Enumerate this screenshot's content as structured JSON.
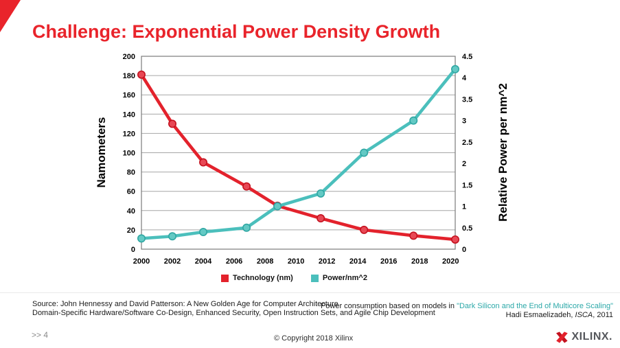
{
  "slide": {
    "title": "Challenge: Exponential Power Density Growth",
    "page_marker": ">> 4",
    "copyright": "© Copyright 2018 Xilinx",
    "logo_text": "XILINX."
  },
  "source_note": {
    "line1": "Source: John Hennessy and David Patterson: A New Golden Age for Computer Architecture",
    "line2": "Domain-Specific Hardware/Software Co-Design, Enhanced Security, Open Instruction Sets, and Agile Chip Development"
  },
  "power_note": {
    "prefix": "Power consumption based on models in ",
    "link": "\"Dark Silicon and the End of Multicore Scaling\"",
    "author_prefix": "Hadi Esmaelizadeh, ",
    "conference": "ISCA",
    "author_suffix": ", 2011"
  },
  "colors": {
    "title_red": "#E9242B",
    "series_red": "#E3222C",
    "series_teal": "#4BBFBC",
    "link_teal": "#2BA8A8",
    "gridline_gray": "#A6A6A6"
  },
  "chart_data": {
    "type": "line",
    "grid": "horizontal",
    "x": [
      2000,
      2002,
      2004,
      2006.8,
      2008.8,
      2011.6,
      2014.4,
      2017.6,
      2020.3
    ],
    "series": [
      {
        "name": "Technology (nm)",
        "axis": "left",
        "color": "#E3222C",
        "marker_fill": "#E84855",
        "marker_stroke": "#C4121F",
        "values": [
          181,
          130,
          90,
          65,
          45,
          32,
          20,
          14,
          10
        ]
      },
      {
        "name": "Power/nm^2",
        "axis": "right",
        "color": "#4BBFBC",
        "marker_fill": "#63C9C4",
        "marker_stroke": "#2FA7A3",
        "values": [
          0.25,
          0.3,
          0.4,
          0.5,
          1.0,
          1.3,
          2.25,
          3.0,
          4.2
        ]
      }
    ],
    "left_axis": {
      "label": "Namometers",
      "min": 0,
      "max": 200,
      "ticks": [
        200,
        180,
        160,
        140,
        120,
        100,
        80,
        60,
        40,
        20,
        0
      ]
    },
    "right_axis": {
      "label": "Relative Power per nm^2",
      "min": 0,
      "max": 4.5,
      "ticks": [
        4.5,
        4,
        3.5,
        3,
        2.5,
        2,
        1.5,
        1,
        0.5,
        0
      ]
    },
    "x_axis": {
      "min": 2000,
      "max": 2020.3,
      "ticks": [
        2000,
        2002,
        2004,
        2006,
        2008,
        2010,
        2012,
        2014,
        2016,
        2018,
        2020
      ]
    },
    "legend": {
      "position": "bottom",
      "entries": [
        "Technology (nm)",
        "Power/nm^2"
      ]
    }
  }
}
